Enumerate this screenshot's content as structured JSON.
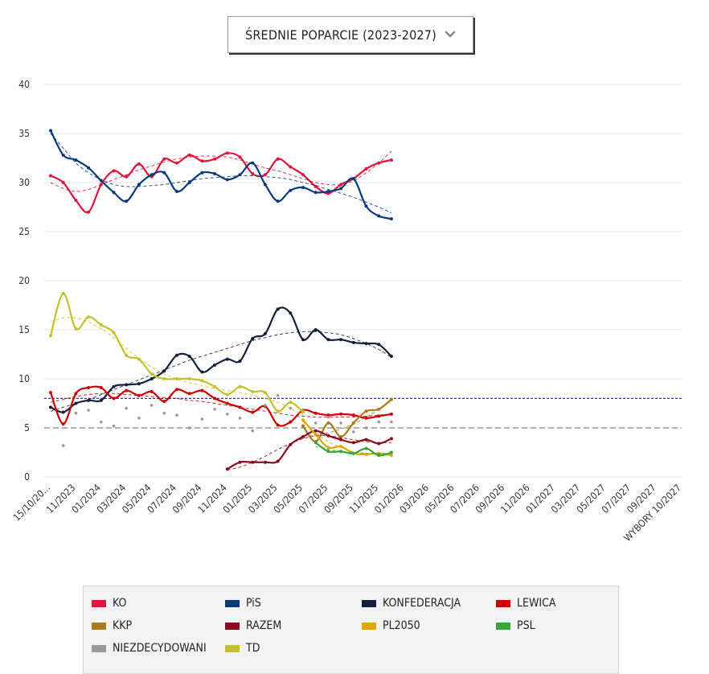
{
  "dropdown": {
    "label": "ŚREDNIE POPARCIE (2023-2027)",
    "icon": "chevron-down-icon"
  },
  "chart_data": {
    "type": "line",
    "title": "",
    "ylim": [
      0,
      40
    ],
    "yticks": [
      0,
      5,
      10,
      15,
      20,
      25,
      30,
      35,
      40
    ],
    "x_categories": [
      "15/10/20...",
      "11/2023",
      "01/2024",
      "03/2024",
      "05/2024",
      "07/2024",
      "09/2024",
      "11/2024",
      "01/2025",
      "03/2025",
      "05/2025",
      "07/2025",
      "09/2025",
      "11/2025",
      "01/2026",
      "03/2026",
      "05/2026",
      "07/2026",
      "09/2026",
      "11/2026",
      "01/2027",
      "03/2027",
      "05/2027",
      "07/2027",
      "09/2027",
      "WYBORY 10/2027"
    ],
    "grid": true,
    "reference_lines": [
      {
        "value": 8,
        "color": "#2a2aee",
        "style": "dotted"
      },
      {
        "value": 5,
        "color": "#999999",
        "style": "dashed"
      }
    ],
    "series": [
      {
        "name": "KO",
        "color": "#e0143c",
        "x": [
          0,
          0.5,
          1,
          1.5,
          2,
          2.5,
          3,
          3.5,
          4,
          4.5,
          5,
          5.5,
          6,
          6.5,
          7,
          7.5,
          8,
          8.5,
          9,
          9.5,
          10,
          10.5,
          11,
          11.5,
          12,
          12.5,
          13,
          13.5
        ],
        "values": [
          30.7,
          30.0,
          28.2,
          27.0,
          29.8,
          31.2,
          30.6,
          31.9,
          30.6,
          32.4,
          32.0,
          32.8,
          32.2,
          32.4,
          33.0,
          32.6,
          30.9,
          30.8,
          32.4,
          31.6,
          30.8,
          29.6,
          28.9,
          29.8,
          30.4,
          31.4,
          32.0,
          32.3
        ],
        "trend": [
          30.0,
          29.4,
          29.1,
          29.3,
          29.8,
          30.3,
          30.8,
          31.3,
          31.7,
          32.1,
          32.4,
          32.6,
          32.7,
          32.7,
          32.6,
          32.3,
          31.9,
          31.5,
          31.2,
          30.8,
          30.4,
          30.0,
          29.8,
          29.8,
          30.2,
          31.0,
          32.0,
          33.2
        ]
      },
      {
        "name": "PiS",
        "color": "#0a3a7a",
        "x": [
          0,
          0.5,
          1,
          1.5,
          2,
          2.5,
          3,
          3.5,
          4,
          4.5,
          5,
          5.5,
          6,
          6.5,
          7,
          7.5,
          8,
          8.5,
          9,
          9.5,
          10,
          10.5,
          11,
          11.5,
          12,
          12.5,
          13,
          13.5
        ],
        "values": [
          35.3,
          32.8,
          32.3,
          31.5,
          30.2,
          29.0,
          28.1,
          29.8,
          30.8,
          31.0,
          29.1,
          30.0,
          31.0,
          30.9,
          30.3,
          30.8,
          32.0,
          29.8,
          28.1,
          29.2,
          29.5,
          29.0,
          29.1,
          29.4,
          30.4,
          27.6,
          26.6,
          26.3
        ],
        "trend": [
          35.0,
          33.5,
          32.0,
          31.0,
          30.3,
          29.8,
          29.6,
          29.6,
          29.7,
          29.8,
          30.0,
          30.2,
          30.4,
          30.5,
          30.6,
          30.7,
          30.7,
          30.6,
          30.5,
          30.3,
          30.0,
          29.7,
          29.3,
          28.9,
          28.5,
          28.0,
          27.5,
          26.9
        ]
      },
      {
        "name": "KONFEDERACJA",
        "color": "#14213d",
        "x": [
          0,
          0.5,
          1,
          1.5,
          2,
          2.5,
          3,
          3.5,
          4,
          4.5,
          5,
          5.5,
          6,
          6.5,
          7,
          7.5,
          8,
          8.5,
          9,
          9.5,
          10,
          10.5,
          11,
          11.5,
          12,
          12.5,
          13,
          13.5
        ],
        "values": [
          7.1,
          6.6,
          7.5,
          7.8,
          7.8,
          9.2,
          9.4,
          9.5,
          10.0,
          10.8,
          12.4,
          12.3,
          10.7,
          11.4,
          12.0,
          11.8,
          14.1,
          14.6,
          17.1,
          16.7,
          14.0,
          15.0,
          14.0,
          14.0,
          13.7,
          13.6,
          13.5,
          12.3
        ],
        "trend": [
          6.7,
          7.1,
          7.5,
          7.9,
          8.4,
          8.9,
          9.4,
          9.9,
          10.4,
          10.9,
          11.4,
          11.9,
          12.3,
          12.7,
          13.1,
          13.5,
          13.9,
          14.2,
          14.5,
          14.7,
          14.8,
          14.8,
          14.7,
          14.5,
          14.1,
          13.6,
          13.0,
          12.2
        ]
      },
      {
        "name": "LEWICA",
        "color": "#cc0000",
        "x": [
          0,
          0.5,
          1,
          1.5,
          2,
          2.5,
          3,
          3.5,
          4,
          4.5,
          5,
          5.5,
          6,
          6.5,
          7,
          7.5,
          8,
          8.5,
          9,
          9.5,
          10,
          10.5,
          11,
          11.5,
          12,
          12.5,
          13,
          13.5
        ],
        "values": [
          8.6,
          5.4,
          8.5,
          9.1,
          9.1,
          8.0,
          8.8,
          8.3,
          8.7,
          7.7,
          8.9,
          8.5,
          8.8,
          8.0,
          7.5,
          7.1,
          6.6,
          7.2,
          5.3,
          5.6,
          6.8,
          6.5,
          6.3,
          6.4,
          6.3,
          6.0,
          6.2,
          6.4
        ],
        "trend": [
          7.6,
          7.9,
          8.2,
          8.4,
          8.5,
          8.5,
          8.4,
          8.3,
          8.2,
          8.1,
          8.0,
          7.8,
          7.7,
          7.5,
          7.3,
          7.1,
          6.9,
          6.7,
          6.5,
          6.3,
          6.2,
          6.1,
          6.1,
          6.1,
          6.1,
          6.2,
          6.3,
          6.4
        ]
      },
      {
        "name": "KKP",
        "color": "#a97c1f",
        "x": [
          10,
          10.5,
          11,
          11.5,
          12,
          12.5,
          13,
          13.5
        ],
        "values": [
          5.2,
          3.6,
          5.5,
          4.1,
          5.5,
          6.7,
          6.9,
          7.9
        ],
        "trend": [
          4.2,
          4.3,
          4.5,
          4.9,
          5.4,
          6.1,
          6.9,
          7.8
        ]
      },
      {
        "name": "RAZEM",
        "color": "#8b0a1e",
        "x": [
          7,
          7.5,
          8,
          8.5,
          9,
          9.5,
          10,
          10.5,
          11,
          11.5,
          12,
          12.5,
          13,
          13.5
        ],
        "values": [
          0.8,
          1.5,
          1.5,
          1.5,
          1.6,
          3.3,
          4.1,
          4.7,
          4.2,
          3.8,
          3.5,
          3.8,
          3.4,
          3.9
        ],
        "trend": [
          0.7,
          1.0,
          1.5,
          2.1,
          2.8,
          3.4,
          3.9,
          4.2,
          4.2,
          4.0,
          3.8,
          3.6,
          3.5,
          3.5
        ]
      },
      {
        "name": "PL2050",
        "color": "#e0a80c",
        "x": [
          10,
          10.5,
          11,
          11.5,
          12,
          12.5,
          13,
          13.5
        ],
        "values": [
          5.8,
          4.3,
          3.0,
          3.1,
          2.4,
          2.3,
          2.4,
          2.2
        ],
        "trend": [
          5.6,
          4.5,
          3.6,
          3.0,
          2.6,
          2.4,
          2.3,
          2.2
        ]
      },
      {
        "name": "PSL",
        "color": "#3aa53a",
        "x": [
          10.5,
          11,
          11.5,
          12,
          12.5,
          13,
          13.5
        ],
        "values": [
          3.5,
          2.6,
          2.6,
          2.4,
          2.9,
          2.2,
          2.5
        ],
        "trend": [
          3.1,
          2.8,
          2.6,
          2.5,
          2.4,
          2.4,
          2.4
        ]
      },
      {
        "name": "NIEZDECYDOWANI",
        "color": "#999999",
        "x": [
          0.5,
          1,
          1.5,
          2,
          2.5,
          3,
          3.5,
          4,
          4.5,
          5,
          5.5,
          6,
          6.5,
          7,
          7.5,
          8,
          8.5,
          9,
          9.5,
          10,
          10.5,
          11,
          11.5,
          12,
          12.5,
          13,
          13.5
        ],
        "values": [
          3.2,
          6.5,
          6.8,
          5.6,
          5.2,
          7.0,
          6.0,
          7.3,
          6.5,
          6.3,
          5.0,
          5.9,
          6.9,
          6.4,
          6.0,
          4.7,
          7.3,
          8.3,
          7.0,
          6.8,
          5.5,
          6.1,
          5.5,
          4.6,
          5.0,
          5.6,
          5.6
        ],
        "trend": []
      },
      {
        "name": "TD",
        "color": "#c4c22a",
        "x": [
          0,
          0.5,
          1,
          1.5,
          2,
          2.5,
          3,
          3.5,
          4,
          4.5,
          5,
          5.5,
          6,
          6.5,
          7,
          7.5,
          8,
          8.5,
          9,
          9.5,
          10
        ],
        "values": [
          14.4,
          18.7,
          15.1,
          16.3,
          15.5,
          14.7,
          12.4,
          12.0,
          10.5,
          10.0,
          10.0,
          10.0,
          9.8,
          9.2,
          8.4,
          9.2,
          8.7,
          8.6,
          6.7,
          7.6,
          6.6
        ],
        "trend": [
          15.8,
          16.2,
          16.2,
          15.8,
          15.1,
          14.2,
          13.1,
          12.1,
          11.2,
          10.5,
          10.0,
          9.6,
          9.3,
          9.0,
          8.8,
          8.6,
          8.3,
          8.0,
          7.6,
          7.0,
          6.3
        ]
      }
    ]
  },
  "legend": {
    "items": [
      {
        "label": "KO",
        "color": "#e0143c"
      },
      {
        "label": "PiS",
        "color": "#0a3a7a"
      },
      {
        "label": "KONFEDERACJA",
        "color": "#14213d"
      },
      {
        "label": "LEWICA",
        "color": "#cc0000"
      },
      {
        "label": "KKP",
        "color": "#a97c1f"
      },
      {
        "label": "RAZEM",
        "color": "#8b0a1e"
      },
      {
        "label": "PL2050",
        "color": "#e0a80c"
      },
      {
        "label": "PSL",
        "color": "#3aa53a"
      },
      {
        "label": "NIEZDECYDOWANI",
        "color": "#999999"
      },
      {
        "label": "TD",
        "color": "#c4c22a"
      }
    ]
  }
}
